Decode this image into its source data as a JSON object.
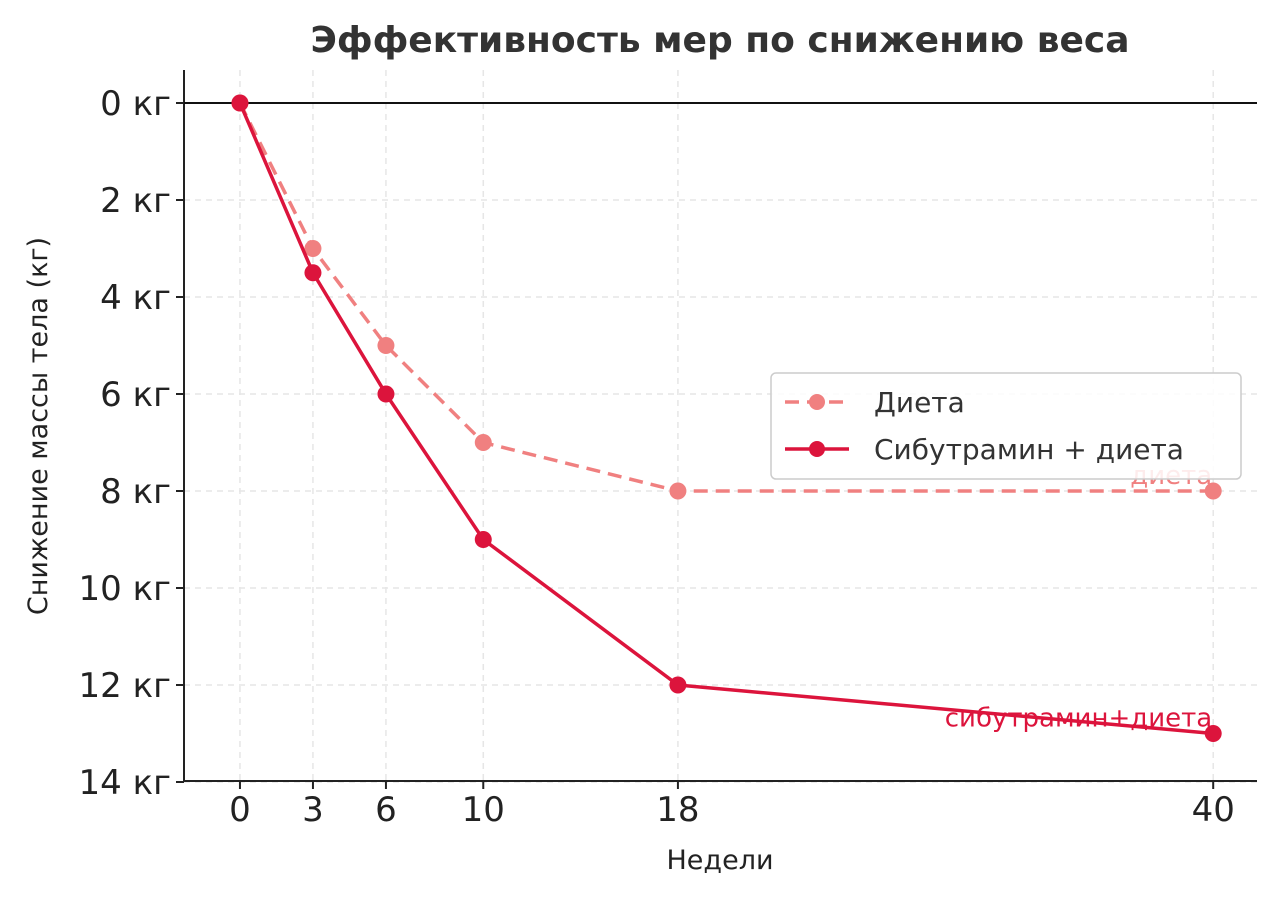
{
  "chart_data": {
    "type": "line",
    "title": "Эффективность мер по снижению веса",
    "xlabel": "Недели",
    "ylabel": "Снижение массы тела (кг)",
    "x": [
      0,
      3,
      6,
      10,
      18,
      40
    ],
    "x_ticks": [
      "0",
      "3",
      "6",
      "10",
      "18",
      "40"
    ],
    "y_ticks": [
      "0 кг",
      "2 кг",
      "4 кг",
      "6 кг",
      "8 кг",
      "10 кг",
      "12 кг",
      "14 кг"
    ],
    "ylim": [
      0,
      14
    ],
    "y_inverted": true,
    "grid": true,
    "legend_position": "right",
    "series": [
      {
        "name": "Диета",
        "values": [
          0,
          3,
          5,
          7,
          8,
          8
        ],
        "color": "#f08080",
        "style": "dashed"
      },
      {
        "name": "Сибутрамин + диета",
        "values": [
          0,
          3.5,
          6,
          9,
          12,
          13
        ],
        "color": "#dc143c",
        "style": "solid"
      }
    ],
    "annotations": [
      {
        "text": "диета",
        "x": 40,
        "y": 8,
        "color": "#f08080"
      },
      {
        "text": "сибутрамин+диета",
        "x": 40,
        "y": 13,
        "color": "#dc143c"
      }
    ]
  }
}
